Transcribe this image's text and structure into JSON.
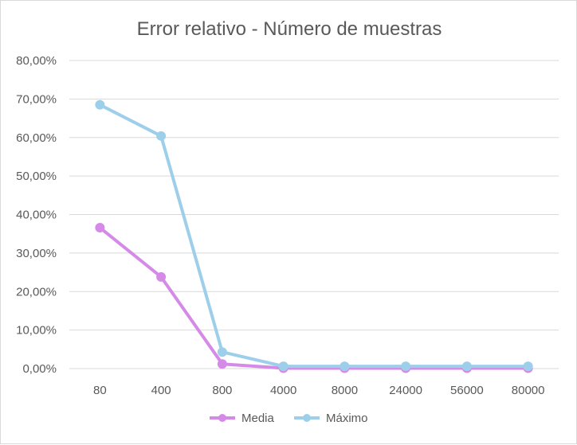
{
  "chart_data": {
    "type": "line",
    "title": "Error relativo - Número de muestras",
    "xlabel": "",
    "ylabel": "",
    "categories": [
      "80",
      "400",
      "800",
      "4000",
      "8000",
      "24000",
      "56000",
      "80000"
    ],
    "y_ticks": [
      "0,00%",
      "10,00%",
      "20,00%",
      "30,00%",
      "40,00%",
      "50,00%",
      "60,00%",
      "70,00%",
      "80,00%"
    ],
    "ylim": [
      0,
      80
    ],
    "grid": true,
    "legend_position": "bottom",
    "series": [
      {
        "name": "Media",
        "color": "#d68ae8",
        "values": [
          36.6,
          23.8,
          1.2,
          0.1,
          0.1,
          0.1,
          0.1,
          0.1
        ]
      },
      {
        "name": "Máximo",
        "color": "#9dcfeb",
        "values": [
          68.5,
          60.4,
          4.3,
          0.6,
          0.6,
          0.6,
          0.6,
          0.6
        ]
      }
    ]
  }
}
